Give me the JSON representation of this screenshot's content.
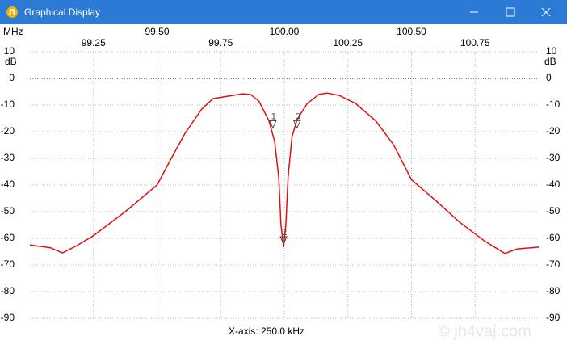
{
  "window": {
    "title": "Graphical Display"
  },
  "chart_data": {
    "type": "line",
    "x_unit": "MHz",
    "y_unit": "dB",
    "footer": "X-axis: 250.0 kHz",
    "watermark": "© jh4vaj.com",
    "xlim": [
      99.0,
      101.0
    ],
    "xticks": [
      99.25,
      {
        "value": 99.5,
        "label": "99.50"
      },
      99.75,
      {
        "value": 100.0,
        "label": "100.00"
      },
      100.25,
      {
        "value": 100.5,
        "label": "100.50"
      },
      100.75
    ],
    "ylim": [
      -90,
      10
    ],
    "yticks": [
      10,
      0,
      -10,
      -20,
      -30,
      -40,
      -50,
      -60,
      -70,
      -80,
      -90
    ],
    "grid": true,
    "color": "#e01010",
    "x": [
      99.0,
      99.08,
      99.128,
      99.18,
      99.25,
      99.375,
      99.5,
      99.556,
      99.61,
      99.676,
      99.72,
      99.835,
      99.867,
      99.9,
      99.94,
      99.962,
      99.978,
      99.987,
      99.997,
      100.006,
      100.015,
      100.03,
      100.05,
      100.09,
      100.136,
      100.168,
      100.216,
      100.28,
      100.36,
      100.43,
      100.5,
      100.597,
      100.69,
      100.787,
      100.867,
      100.914,
      101.0
    ],
    "values": [
      -62.5,
      -63.5,
      -65.5,
      -63,
      -59,
      -50,
      -40,
      -30,
      -20.6,
      -11.5,
      -7.6,
      -5.8,
      -6,
      -8.5,
      -16,
      -23.6,
      -37,
      -55,
      -63.3,
      -55,
      -37,
      -22,
      -15.5,
      -9.4,
      -6,
      -5.5,
      -6.4,
      -9.4,
      -16,
      -25,
      -38,
      -46,
      -54,
      -61,
      -65.7,
      -64,
      -63.3
    ],
    "markers": [
      {
        "label": "1",
        "x": 99.955,
        "y": -18
      },
      {
        "label": "2",
        "x": 99.997,
        "y": -61.5
      },
      {
        "label": "3",
        "x": 100.05,
        "y": -18
      }
    ]
  }
}
